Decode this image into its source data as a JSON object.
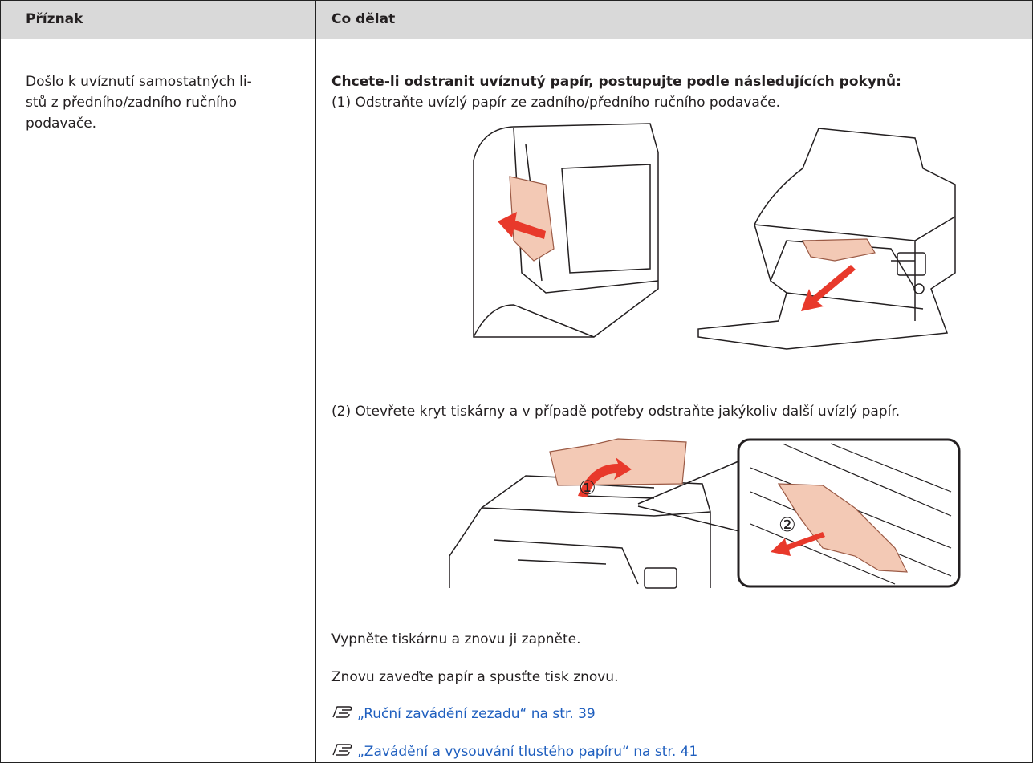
{
  "table": {
    "header": [
      "Příznak",
      "Co dělat"
    ],
    "rows": [
      {
        "symptom": [
          "Došlo k uvíznutí samostatných li-",
          "stů z předního/zadního ručního",
          "podavače."
        ],
        "solution": {
          "heading": "Chcete-li odstranit uvíznutý papír, postupujte podle následujících pokynů:",
          "step1": "(1) Odstraňte uvízlý papír ze zadního/předního ručního podavače.",
          "step2": "(2) Otevřete kryt tiskárny a v případě potřeby odstraňte jakýkoliv další uvízlý papír.",
          "callouts": [
            "①",
            "②"
          ],
          "notes": [
            "Vypněte tiskárnu a znovu ji zapněte.",
            "Znovu zaveďte papír a spusťte tisk znovu."
          ],
          "links": [
            "„Ruční zavádění zezadu“ na str. 39",
            "„Zavádění a vysouvání tlustého papíru“ na str. 41"
          ]
        }
      }
    ]
  }
}
